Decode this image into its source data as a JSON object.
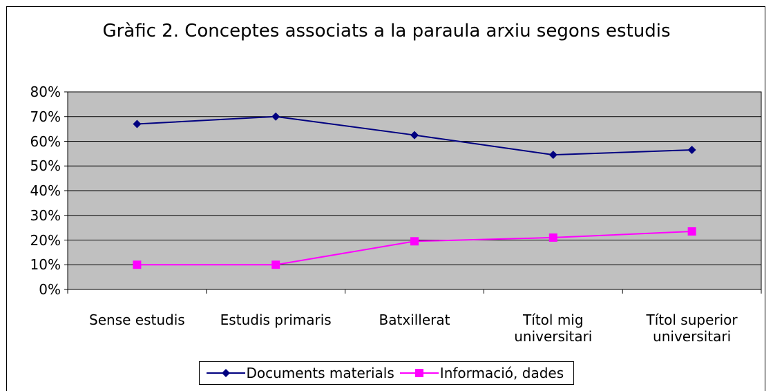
{
  "chart_data": {
    "type": "line",
    "title": "Gràfic 2. Conceptes associats a la paraula arxiu segons estudis",
    "categories": [
      "Sense estudis",
      "Estudis primaris",
      "Batxillerat",
      "Títol mig universitari",
      "Títol superior universitari"
    ],
    "series": [
      {
        "name": "Documents materials",
        "color": "#000080",
        "marker": "diamond",
        "values": [
          67,
          70,
          62.5,
          54.5,
          56.5
        ]
      },
      {
        "name": "Informació, dades",
        "color": "#ff00ff",
        "marker": "square",
        "values": [
          10,
          10,
          19.5,
          21,
          23.5
        ]
      }
    ],
    "ylim": [
      0,
      80
    ],
    "yticks": [
      {
        "value": 0,
        "label": "0%"
      },
      {
        "value": 10,
        "label": "10%"
      },
      {
        "value": 20,
        "label": "20%"
      },
      {
        "value": 30,
        "label": "30%"
      },
      {
        "value": 40,
        "label": "40%"
      },
      {
        "value": 50,
        "label": "50%"
      },
      {
        "value": 60,
        "label": "60%"
      },
      {
        "value": 70,
        "label": "70%"
      },
      {
        "value": 80,
        "label": "80%"
      }
    ],
    "grid": true,
    "plot_background": "#c0c0c0",
    "legend": "bottom"
  }
}
